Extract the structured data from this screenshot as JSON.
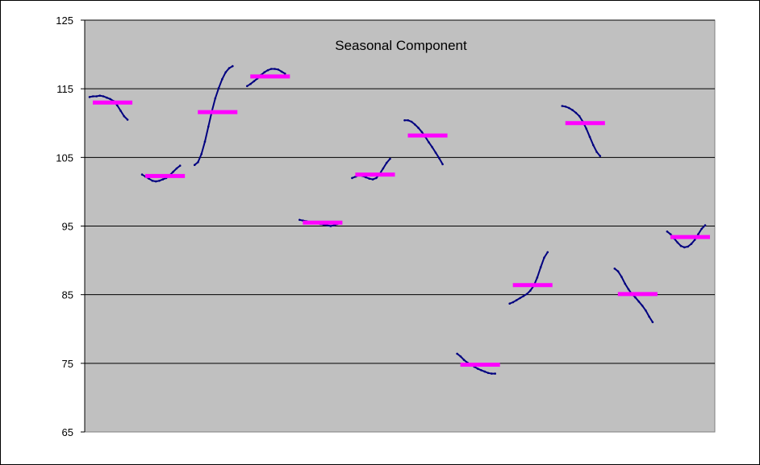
{
  "chart_data": {
    "type": "line",
    "title": "Seasonal Component",
    "xlabel": "",
    "ylabel": "",
    "ylim": [
      65,
      125
    ],
    "yticks": [
      65,
      75,
      85,
      95,
      105,
      115,
      125
    ],
    "grid": true,
    "legend": "none",
    "colors": {
      "plot_background": "#c0c0c0",
      "curve": "#000080",
      "mean": "#ff00ff",
      "gridline": "#000000"
    },
    "series": [
      {
        "values": [
          [
            113.8,
            113.9,
            113.9,
            114.0,
            113.9,
            113.7,
            113.5,
            113.2,
            112.6,
            111.8,
            111.0,
            110.5
          ],
          [
            102.5,
            102.2,
            101.9,
            101.6,
            101.5,
            101.6,
            101.8,
            102.0,
            102.4,
            102.9,
            103.4,
            103.8
          ],
          [
            103.9,
            104.3,
            105.5,
            107.3,
            109.5,
            111.7,
            113.6,
            115.1,
            116.4,
            117.4,
            118.0,
            118.3
          ],
          [
            115.4,
            115.7,
            116.1,
            116.5,
            117.0,
            117.4,
            117.7,
            117.9,
            117.9,
            117.8,
            117.5,
            117.2
          ],
          [
            95.9,
            95.8,
            95.7,
            95.6,
            95.5,
            95.4,
            95.3,
            95.2,
            95.1,
            95.0,
            95.1,
            95.3
          ],
          [
            102.0,
            102.2,
            102.4,
            102.3,
            102.1,
            101.9,
            101.8,
            102.0,
            102.6,
            103.4,
            104.2,
            104.8
          ],
          [
            110.4,
            110.4,
            110.2,
            109.8,
            109.3,
            108.7,
            108.0,
            107.2,
            106.5,
            105.7,
            104.9,
            104.0
          ],
          [
            76.4,
            76.0,
            75.5,
            75.1,
            74.8,
            74.5,
            74.2,
            74.0,
            73.8,
            73.6,
            73.5,
            73.5
          ],
          [
            83.7,
            83.9,
            84.2,
            84.5,
            84.8,
            85.1,
            85.6,
            86.3,
            87.5,
            89.0,
            90.4,
            91.2
          ],
          [
            112.5,
            112.4,
            112.2,
            111.9,
            111.5,
            111.0,
            110.2,
            109.2,
            108.0,
            106.8,
            105.8,
            105.2
          ],
          [
            88.8,
            88.4,
            87.6,
            86.6,
            85.8,
            85.1,
            84.6,
            84.0,
            83.4,
            82.7,
            81.8,
            81.0
          ],
          [
            94.2,
            93.8,
            93.2,
            92.6,
            92.1,
            91.9,
            92.0,
            92.4,
            93.0,
            93.8,
            94.6,
            95.1
          ]
        ]
      },
      {
        "values": [
          113.0,
          102.3,
          111.6,
          116.8,
          95.5,
          102.5,
          108.2,
          74.8,
          86.4,
          110.0,
          85.1,
          93.4
        ]
      }
    ]
  }
}
